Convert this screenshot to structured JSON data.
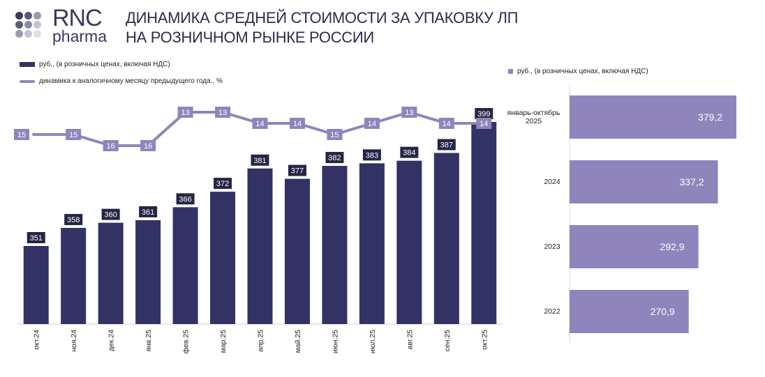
{
  "logo": {
    "line1": "RNC",
    "line2": "pharma"
  },
  "title": {
    "line1": "ДИНАМИКА СРЕДНЕЙ СТОИМОСТИ ЗА УПАКОВКУ ЛП",
    "line2": "НА РОЗНИЧНОМ РЫНКЕ РОССИИ"
  },
  "legend": {
    "bars": "руб., (в розничных ценах, включая НДС)",
    "line": "динамика к аналогичному месяцу предыдущего года., %",
    "hbars": "руб., (в розничных ценах, включая НДС)"
  },
  "colors": {
    "bar": "#323264",
    "line": "#8f85bc",
    "hbar": "#8f85bc",
    "label_bg": "#252545"
  },
  "chart_data": [
    {
      "type": "bar",
      "categories": [
        "окт.24",
        "ноя.24",
        "дек.24",
        "янв.25",
        "фев.25",
        "мар.25",
        "апр.25",
        "май.25",
        "июн.25",
        "июл.25",
        "авг.25",
        "сен.25",
        "окт.25"
      ],
      "series": [
        {
          "name": "руб., (в розничных ценах, включая НДС)",
          "type": "bar",
          "values": [
            351,
            358,
            360,
            361,
            366,
            372,
            381,
            377,
            382,
            383,
            384,
            387,
            399
          ]
        },
        {
          "name": "динамика к аналогичному месяцу предыдущего года., %",
          "type": "line",
          "values": [
            15,
            15,
            16,
            16,
            13,
            13,
            14,
            14,
            15,
            14,
            13,
            14,
            14
          ]
        }
      ],
      "grid": false
    },
    {
      "type": "bar",
      "orientation": "horizontal",
      "categories": [
        "январь-октябрь 2025",
        "2024",
        "2023",
        "2022"
      ],
      "values": [
        379.2,
        337.2,
        292.9,
        270.9
      ],
      "value_labels": [
        "379,2",
        "337,2",
        "292,9",
        "270,9"
      ],
      "grid": false
    }
  ]
}
